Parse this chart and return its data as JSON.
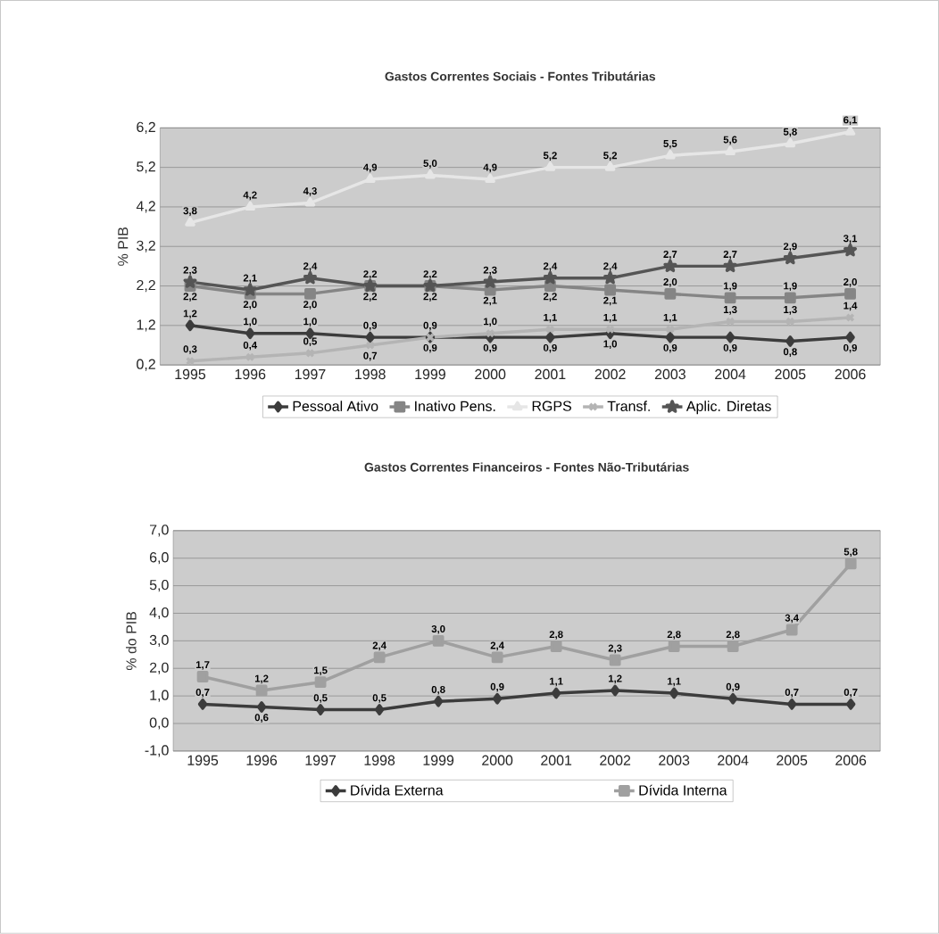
{
  "chart_data": [
    {
      "type": "line",
      "title": "Gastos Correntes Sociais - Fontes Tributárias",
      "ylabel": "% PIB",
      "categories": [
        "1995",
        "1996",
        "1997",
        "1998",
        "1999",
        "2000",
        "2001",
        "2002",
        "2003",
        "2004",
        "2005",
        "2006"
      ],
      "series": [
        {
          "name": "Pessoal Ativo",
          "color": "#3c3c3c",
          "marker": "diamond",
          "values": [
            1.2,
            1.0,
            1.0,
            0.9,
            0.9,
            0.9,
            0.9,
            1.0,
            0.9,
            0.9,
            0.8,
            0.9
          ],
          "value_labels": [
            "1,2",
            "1,0",
            "1,0",
            "0,9",
            "0,9",
            "0,9",
            "0,9",
            "1,0",
            "0,9",
            "0,9",
            "0,8",
            "0,9"
          ]
        },
        {
          "name": "Inativo Pens.",
          "color": "#858585",
          "marker": "square",
          "values": [
            2.2,
            2.0,
            2.0,
            2.2,
            2.2,
            2.1,
            2.2,
            2.1,
            2.0,
            1.9,
            1.9,
            2.0
          ],
          "value_labels": [
            "2,2",
            "2,0",
            "2,0",
            "2,2",
            "2,2",
            "2,1",
            "2,2",
            "2,1",
            "2,0",
            "1,9",
            "1,9",
            "2,0"
          ]
        },
        {
          "name": "RGPS",
          "color": "#e6e6e6",
          "marker": "triangle",
          "values": [
            3.8,
            4.2,
            4.3,
            4.9,
            5.0,
            4.9,
            5.2,
            5.2,
            5.5,
            5.6,
            5.8,
            6.1
          ],
          "value_labels": [
            "3,8",
            "4,2",
            "4,3",
            "4,9",
            "5,0",
            "4,9",
            "5,2",
            "5,2",
            "5,5",
            "5,6",
            "5,8",
            "6,1"
          ]
        },
        {
          "name": "Transf.",
          "color": "#b4b4b4",
          "marker": "cross",
          "values": [
            0.3,
            0.4,
            0.5,
            0.7,
            0.9,
            1.0,
            1.1,
            1.1,
            1.1,
            1.3,
            1.3,
            1.4
          ],
          "value_labels": [
            "0,3",
            "0,4",
            "0,5",
            "0,7",
            "0,9",
            "1,0",
            "1,1",
            "1,1",
            "1,1",
            "1,3",
            "1,3",
            "1,4"
          ]
        },
        {
          "name": "Aplic. Diretas",
          "color": "#555555",
          "marker": "star",
          "values": [
            2.3,
            2.1,
            2.4,
            2.2,
            2.2,
            2.3,
            2.4,
            2.4,
            2.7,
            2.7,
            2.9,
            3.1
          ],
          "value_labels": [
            "2,3",
            "2,1",
            "2,4",
            "2,2",
            "2,2",
            "2,3",
            "2,4",
            "2,4",
            "2,7",
            "2,7",
            "2,9",
            "3,1"
          ]
        }
      ],
      "ylim": [
        0.2,
        6.2
      ],
      "yticks": [
        {
          "value": 0.2,
          "label": "0,2"
        },
        {
          "value": 1.2,
          "label": "1,2"
        },
        {
          "value": 2.2,
          "label": "2,2"
        },
        {
          "value": 3.2,
          "label": "3,2"
        },
        {
          "value": 4.2,
          "label": "4,2"
        },
        {
          "value": 5.2,
          "label": "5,2"
        },
        {
          "value": 6.2,
          "label": "6,2"
        }
      ],
      "grid": "y",
      "legend": "bottom"
    },
    {
      "type": "line",
      "title": "Gastos Correntes Financeiros - Fontes Não-Tributárias",
      "ylabel": "% do PIB",
      "categories": [
        "1995",
        "1996",
        "1997",
        "1998",
        "1999",
        "2000",
        "2001",
        "2002",
        "2003",
        "2004",
        "2005",
        "2006"
      ],
      "series": [
        {
          "name": "Dívida Externa",
          "color": "#3c3c3c",
          "marker": "diamond",
          "values": [
            0.7,
            0.6,
            0.5,
            0.5,
            0.8,
            0.9,
            1.1,
            1.2,
            1.1,
            0.9,
            0.7,
            0.7
          ],
          "value_labels": [
            "0,7",
            "0,6",
            "0,5",
            "0,5",
            "0,8",
            "0,9",
            "1,1",
            "1,2",
            "1,1",
            "0,9",
            "0,7",
            "0,7"
          ]
        },
        {
          "name": "Dívida Interna",
          "color": "#a0a0a0",
          "marker": "square",
          "values": [
            1.7,
            1.2,
            1.5,
            2.4,
            3.0,
            2.4,
            2.8,
            2.3,
            2.8,
            2.8,
            3.4,
            5.8
          ],
          "value_labels": [
            "1,7",
            "1,2",
            "1,5",
            "2,4",
            "3,0",
            "2,4",
            "2,8",
            "2,3",
            "2,8",
            "2,8",
            "3,4",
            "5,8"
          ]
        }
      ],
      "ylim": [
        -1.0,
        7.0
      ],
      "yticks": [
        {
          "value": -1.0,
          "label": "-1,0"
        },
        {
          "value": 0.0,
          "label": "0,0"
        },
        {
          "value": 1.0,
          "label": "1,0"
        },
        {
          "value": 2.0,
          "label": "2,0"
        },
        {
          "value": 3.0,
          "label": "3,0"
        },
        {
          "value": 4.0,
          "label": "4,0"
        },
        {
          "value": 5.0,
          "label": "5,0"
        },
        {
          "value": 6.0,
          "label": "6,0"
        },
        {
          "value": 7.0,
          "label": "7,0"
        }
      ],
      "grid": "y",
      "legend": "bottom"
    }
  ]
}
